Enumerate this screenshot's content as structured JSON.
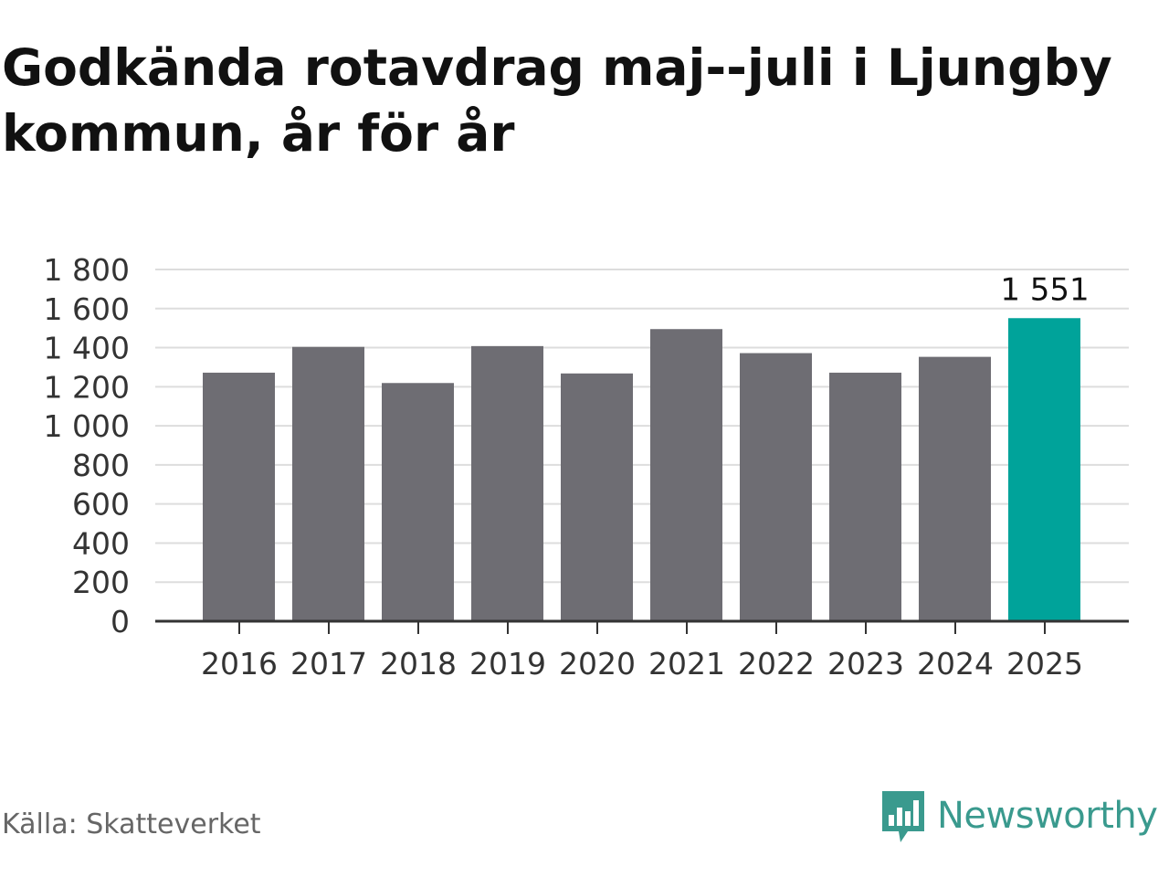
{
  "title": "Godkända rotavdrag maj--juli i Ljungby kommun, år för år",
  "source": "Källa: Skatteverket",
  "brand": {
    "name": "Newsworthy",
    "icon": "newsworthy-logo-icon",
    "color": "#3a9a8e"
  },
  "chart_data": {
    "type": "bar",
    "categories": [
      "2016",
      "2017",
      "2018",
      "2019",
      "2020",
      "2021",
      "2022",
      "2023",
      "2024",
      "2025"
    ],
    "values": [
      1272,
      1404,
      1219,
      1408,
      1268,
      1495,
      1372,
      1272,
      1353,
      1551
    ],
    "ylim": [
      0,
      1800
    ],
    "yticks": [
      0,
      200,
      400,
      600,
      800,
      1000,
      1200,
      1400,
      1600,
      1800
    ],
    "ytick_labels": [
      "0",
      "200",
      "400",
      "600",
      "800",
      "1 000",
      "1 200",
      "1 400",
      "1 600",
      "1 800"
    ],
    "grid": true,
    "bar_color": "#6e6d73",
    "highlight_color": "#00a39a",
    "highlight_index": 9,
    "annotation": {
      "index": 9,
      "text": "1 551"
    }
  }
}
